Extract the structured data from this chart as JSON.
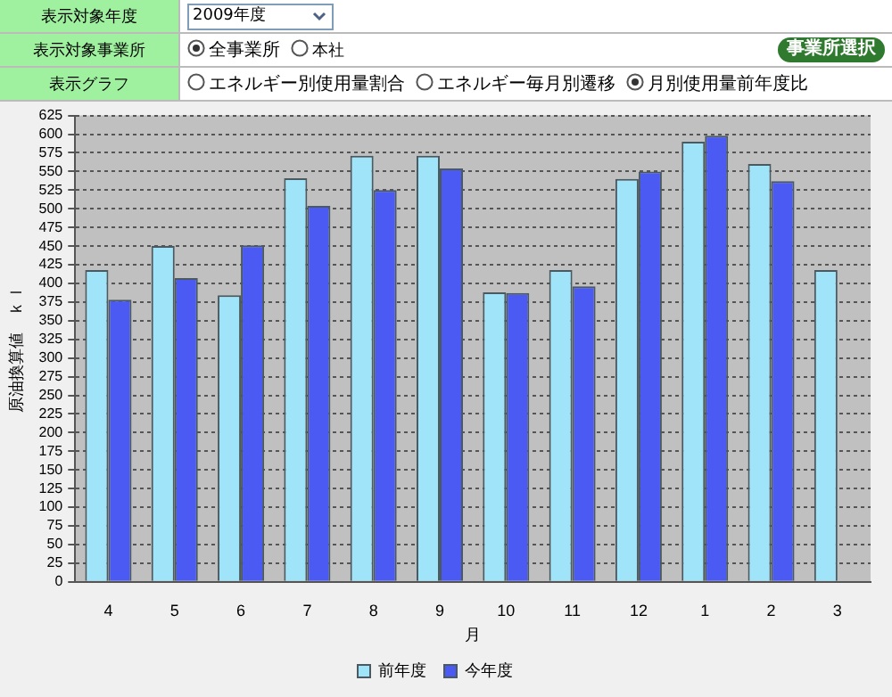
{
  "chart_data": {
    "type": "bar",
    "annotations": [
      "表示対象年度",
      "2009年度",
      "表示対象事業所",
      "全事業所",
      "本社",
      "事業所選択",
      "表示グラフ",
      "エネルギー別使用量割合",
      "エネルギー毎月別遷移",
      "月別使用量前年度比"
    ],
    "xlabel": "月",
    "ylabel": "原油換算値　ｋｌ",
    "categories": [
      "4",
      "5",
      "6",
      "7",
      "8",
      "9",
      "10",
      "11",
      "12",
      "1",
      "2",
      "3"
    ],
    "series": [
      {
        "name": "前年度",
        "color": "#a0e4fa",
        "values": [
          418,
          450,
          384,
          541,
          571,
          571,
          388,
          418,
          540,
          590,
          560,
          418
        ]
      },
      {
        "name": "今年度",
        "color": "#4a5af2",
        "values": [
          378,
          407,
          451,
          504,
          525,
          554,
          387,
          396,
          550,
          598,
          537,
          null
        ]
      }
    ],
    "ylim": [
      0,
      625
    ],
    "yticks": [
      0,
      25,
      50,
      75,
      100,
      125,
      150,
      175,
      200,
      225,
      250,
      275,
      300,
      325,
      350,
      375,
      400,
      425,
      450,
      475,
      500,
      525,
      550,
      575,
      600,
      625
    ],
    "grid": "y",
    "legend": "bottom"
  }
}
